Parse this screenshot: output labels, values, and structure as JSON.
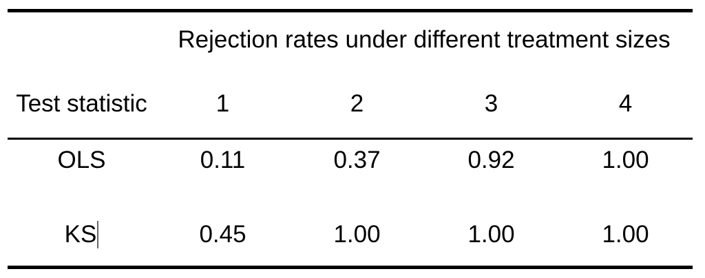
{
  "table": {
    "title": "Rejection rates under different treatment sizes",
    "header": {
      "row_label": "Test statistic",
      "columns": [
        "1",
        "2",
        "3",
        "4"
      ]
    },
    "rows": [
      {
        "label": "OLS",
        "values": [
          "0.11",
          "0.37",
          "0.92",
          "1.00"
        ]
      },
      {
        "label": "KS",
        "values": [
          "0.45",
          "1.00",
          "1.00",
          "1.00"
        ]
      }
    ],
    "caret_after_label": "KS"
  },
  "colors": {
    "text": "#000000",
    "rule": "#000000",
    "background": "#ffffff",
    "caret": "#666666"
  },
  "chart_data": {
    "type": "table",
    "title": "Rejection rates under different treatment sizes",
    "columns": [
      "Test statistic",
      "1",
      "2",
      "3",
      "4"
    ],
    "rows": [
      [
        "OLS",
        0.11,
        0.37,
        0.92,
        1.0
      ],
      [
        "KS",
        0.45,
        1.0,
        1.0,
        1.0
      ]
    ]
  }
}
